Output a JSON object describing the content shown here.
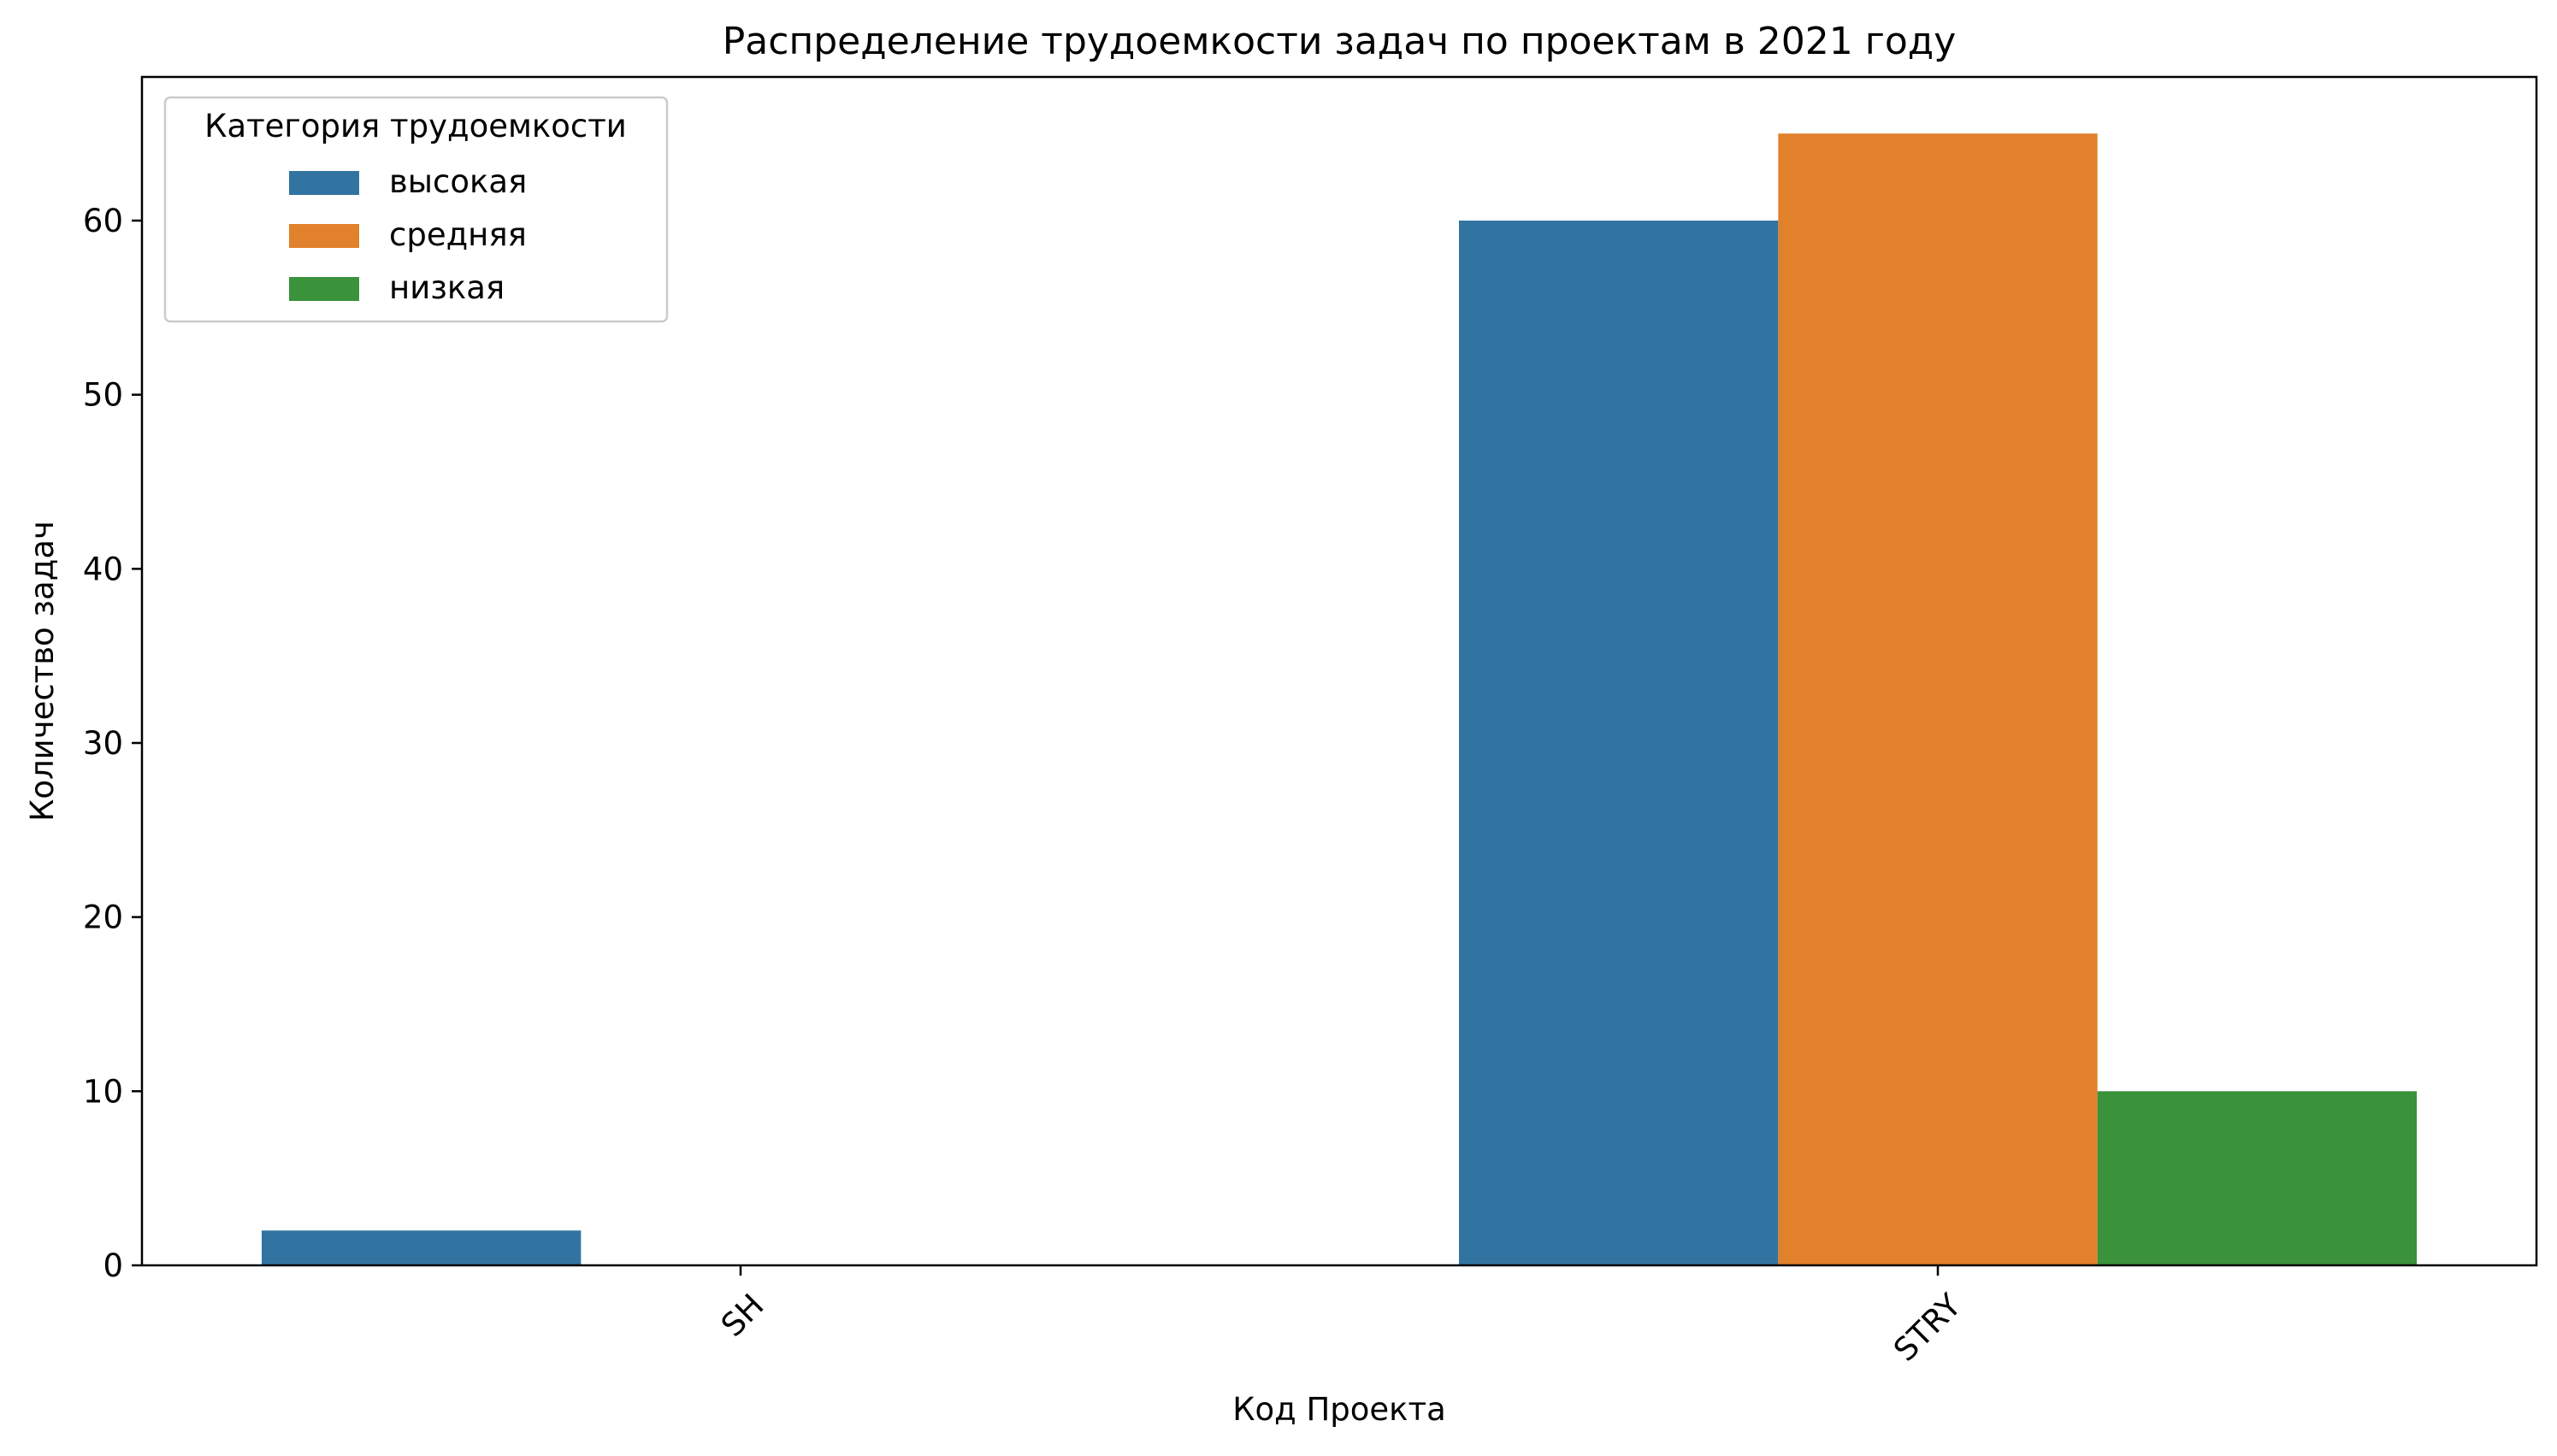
{
  "chart_data": {
    "type": "bar",
    "title": "Распределение трудоемкости задач по проектам в 2021 году",
    "xlabel": "Код Проекта",
    "ylabel": "Количество задач",
    "categories": [
      "SH",
      "STRY"
    ],
    "series": [
      {
        "name": "высокая",
        "values": [
          2,
          60
        ],
        "color": "#3274a1"
      },
      {
        "name": "средняя",
        "values": [
          0,
          65
        ],
        "color": "#e1812c"
      },
      {
        "name": "низкая",
        "values": [
          0,
          10
        ],
        "color": "#3a923a"
      }
    ],
    "ylim": [
      0,
      68.25
    ],
    "yticks": [
      0,
      10,
      20,
      30,
      40,
      50,
      60
    ],
    "grid": false,
    "legend": {
      "title": "Категория трудоемкости",
      "placement": "top-left"
    },
    "xtick_rotation": 45
  }
}
